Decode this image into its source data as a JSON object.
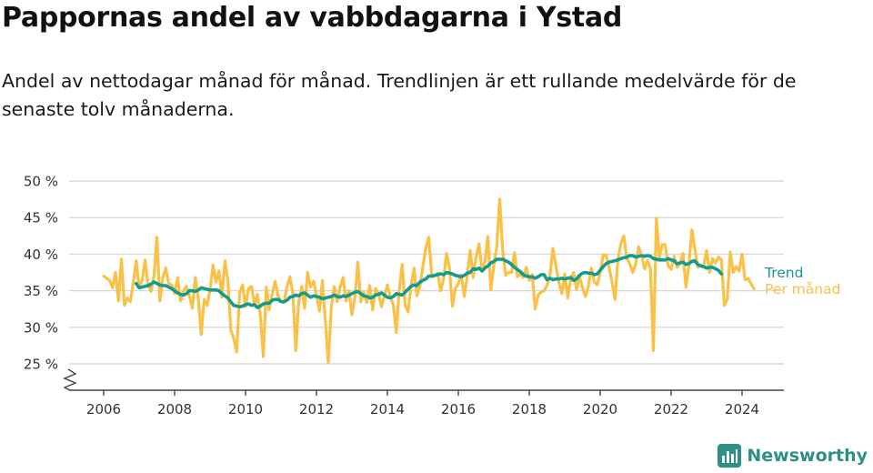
{
  "header": {
    "title": "Pappornas andel av vabbdagarna i Ystad",
    "subtitle": "Andel av nettodagar månad för månad. Trendlinjen är ett rullande medelvärde för de senaste tolv månaderna."
  },
  "brand": {
    "name": "Newsworthy"
  },
  "colors": {
    "monthly": "#fbc147",
    "trend": "#139b8e",
    "grid": "#d9d9d9",
    "axis": "#444444"
  },
  "chart_data": {
    "type": "line",
    "y_ticks": [
      "25 %",
      "30 %",
      "35 %",
      "40 %",
      "45 %",
      "50 %"
    ],
    "x_ticks": [
      "2006",
      "2008",
      "2010",
      "2012",
      "2014",
      "2016",
      "2018",
      "2020",
      "2022",
      "2024"
    ],
    "ylim": [
      25,
      50
    ],
    "y_axis_broken": true,
    "grid": true,
    "legend_placement": "right, at line ends",
    "x_start": "2006-01",
    "series": [
      {
        "name": "Per månad",
        "values": [
          37.0,
          36.7,
          36.4,
          35.4,
          37.5,
          33.6,
          39.3,
          33.0,
          34.0,
          33.5,
          36.0,
          39.1,
          35.5,
          36.4,
          39.2,
          35.8,
          34.9,
          37.0,
          42.3,
          33.6,
          36.8,
          38.1,
          36.0,
          35.8,
          34.6,
          36.8,
          33.6,
          35.0,
          35.6,
          34.3,
          32.6,
          36.8,
          34.0,
          29.0,
          33.8,
          33.0,
          35.2,
          38.5,
          36.2,
          37.7,
          34.1,
          39.1,
          36.5,
          29.6,
          28.5,
          26.6,
          34.7,
          35.8,
          32.8,
          35.3,
          35.6,
          33.1,
          34.5,
          31.6,
          26.0,
          35.5,
          32.4,
          34.5,
          36.3,
          34.3,
          33.6,
          33.4,
          35.5,
          36.9,
          34.6,
          26.8,
          33.4,
          35.6,
          32.6,
          37.5,
          35.5,
          36.3,
          34.4,
          32.2,
          36.4,
          30.8,
          25.2,
          32.7,
          35.6,
          33.5,
          35.5,
          36.8,
          33.6,
          35.0,
          31.7,
          34.1,
          38.9,
          33.5,
          34.8,
          33.4,
          35.7,
          32.4,
          35.3,
          34.6,
          32.8,
          34.3,
          35.8,
          34.1,
          33.1,
          29.3,
          35.1,
          38.6,
          33.0,
          32.1,
          35.7,
          38.1,
          34.3,
          35.6,
          38.3,
          40.9,
          42.3,
          36.9,
          37.0,
          37.4,
          35.0,
          36.6,
          40.1,
          38.1,
          32.9,
          35.3,
          36.0,
          37.2,
          34.2,
          37.0,
          40.5,
          36.8,
          39.6,
          41.4,
          37.7,
          39.0,
          42.4,
          35.1,
          38.4,
          41.1,
          47.5,
          40.5,
          37.1,
          37.5,
          37.5,
          40.2,
          36.9,
          37.3,
          36.8,
          38.2,
          36.4,
          37.2,
          32.5,
          34.4,
          34.8,
          35.0,
          35.7,
          37.2,
          40.8,
          38.4,
          36.2,
          34.6,
          37.3,
          34.0,
          36.6,
          37.5,
          35.2,
          36.9,
          35.4,
          34.2,
          35.6,
          38.1,
          36.2,
          35.8,
          37.5,
          39.9,
          39.9,
          38.2,
          36.2,
          33.8,
          39.2,
          41.5,
          42.5,
          39.4,
          38.7,
          37.5,
          38.6,
          41.0,
          39.8,
          38.0,
          39.1,
          38.0,
          26.8,
          44.9,
          39.5,
          41.3,
          41.3,
          38.4,
          37.9,
          39.7,
          38.2,
          38.7,
          40.1,
          35.5,
          38.4,
          43.3,
          40.8,
          38.2,
          38.4,
          38.4,
          40.5,
          37.5,
          39.4,
          38.8,
          39.6,
          39.2,
          33.0,
          33.8,
          40.3,
          37.5,
          38.3,
          37.7,
          40.0,
          36.5,
          36.7,
          36.0,
          35.3
        ]
      },
      {
        "name": "Trend",
        "x_start": "2006-12",
        "values": [
          36.0,
          35.4,
          35.5,
          35.6,
          35.7,
          35.9,
          36.2,
          36.0,
          35.8,
          35.7,
          35.7,
          35.5,
          35.3,
          35.0,
          34.7,
          34.5,
          34.4,
          34.6,
          35.0,
          35.0,
          34.9,
          35.1,
          35.4,
          35.3,
          35.2,
          35.1,
          35.1,
          35.1,
          35.0,
          34.6,
          34.3,
          34.0,
          33.5,
          33.0,
          32.9,
          32.8,
          32.9,
          33.1,
          33.2,
          33.0,
          33.1,
          32.7,
          32.9,
          33.2,
          33.3,
          33.3,
          33.7,
          33.8,
          33.8,
          33.5,
          33.5,
          33.7,
          34.1,
          34.2,
          34.4,
          34.3,
          34.6,
          34.7,
          34.4,
          34.1,
          34.3,
          34.2,
          34.1,
          33.9,
          34.0,
          34.1,
          34.2,
          34.4,
          34.2,
          34.1,
          34.3,
          34.2,
          34.4,
          34.6,
          34.8,
          34.9,
          34.6,
          34.3,
          34.2,
          34.0,
          34.1,
          34.4,
          34.5,
          34.7,
          34.4,
          34.1,
          34.0,
          34.2,
          34.6,
          34.5,
          34.4,
          34.8,
          35.2,
          35.6,
          35.8,
          35.7,
          36.2,
          36.4,
          36.6,
          37.0,
          37.0,
          37.1,
          37.2,
          37.3,
          37.2,
          37.5,
          37.4,
          37.3,
          37.1,
          37.0,
          36.9,
          37.1,
          37.4,
          37.5,
          38.0,
          37.9,
          38.1,
          37.7,
          38.1,
          38.4,
          38.8,
          39.0,
          39.3,
          39.3,
          39.3,
          39.1,
          38.9,
          38.6,
          38.2,
          37.9,
          37.6,
          37.2,
          37.0,
          36.9,
          36.9,
          36.7,
          36.9,
          37.2,
          37.2,
          36.5,
          36.7,
          36.5,
          36.6,
          36.6,
          36.7,
          36.6,
          36.7,
          36.8,
          36.4,
          36.6,
          37.1,
          37.4,
          37.5,
          37.4,
          37.4,
          37.2,
          37.3,
          37.8,
          38.3,
          38.7,
          38.9,
          39.0,
          39.1,
          39.2,
          39.4,
          39.5,
          39.6,
          39.8,
          39.8,
          39.6,
          39.7,
          39.8,
          39.7,
          39.8,
          39.7,
          39.4,
          39.3,
          39.2,
          39.2,
          39.2,
          39.4,
          39.2,
          39.1,
          38.7,
          38.8,
          38.9,
          38.6,
          38.7,
          39.0,
          39.1,
          38.6,
          38.4,
          38.3,
          38.1,
          38.2,
          38.2,
          38.0,
          37.8,
          37.3
        ]
      }
    ]
  }
}
